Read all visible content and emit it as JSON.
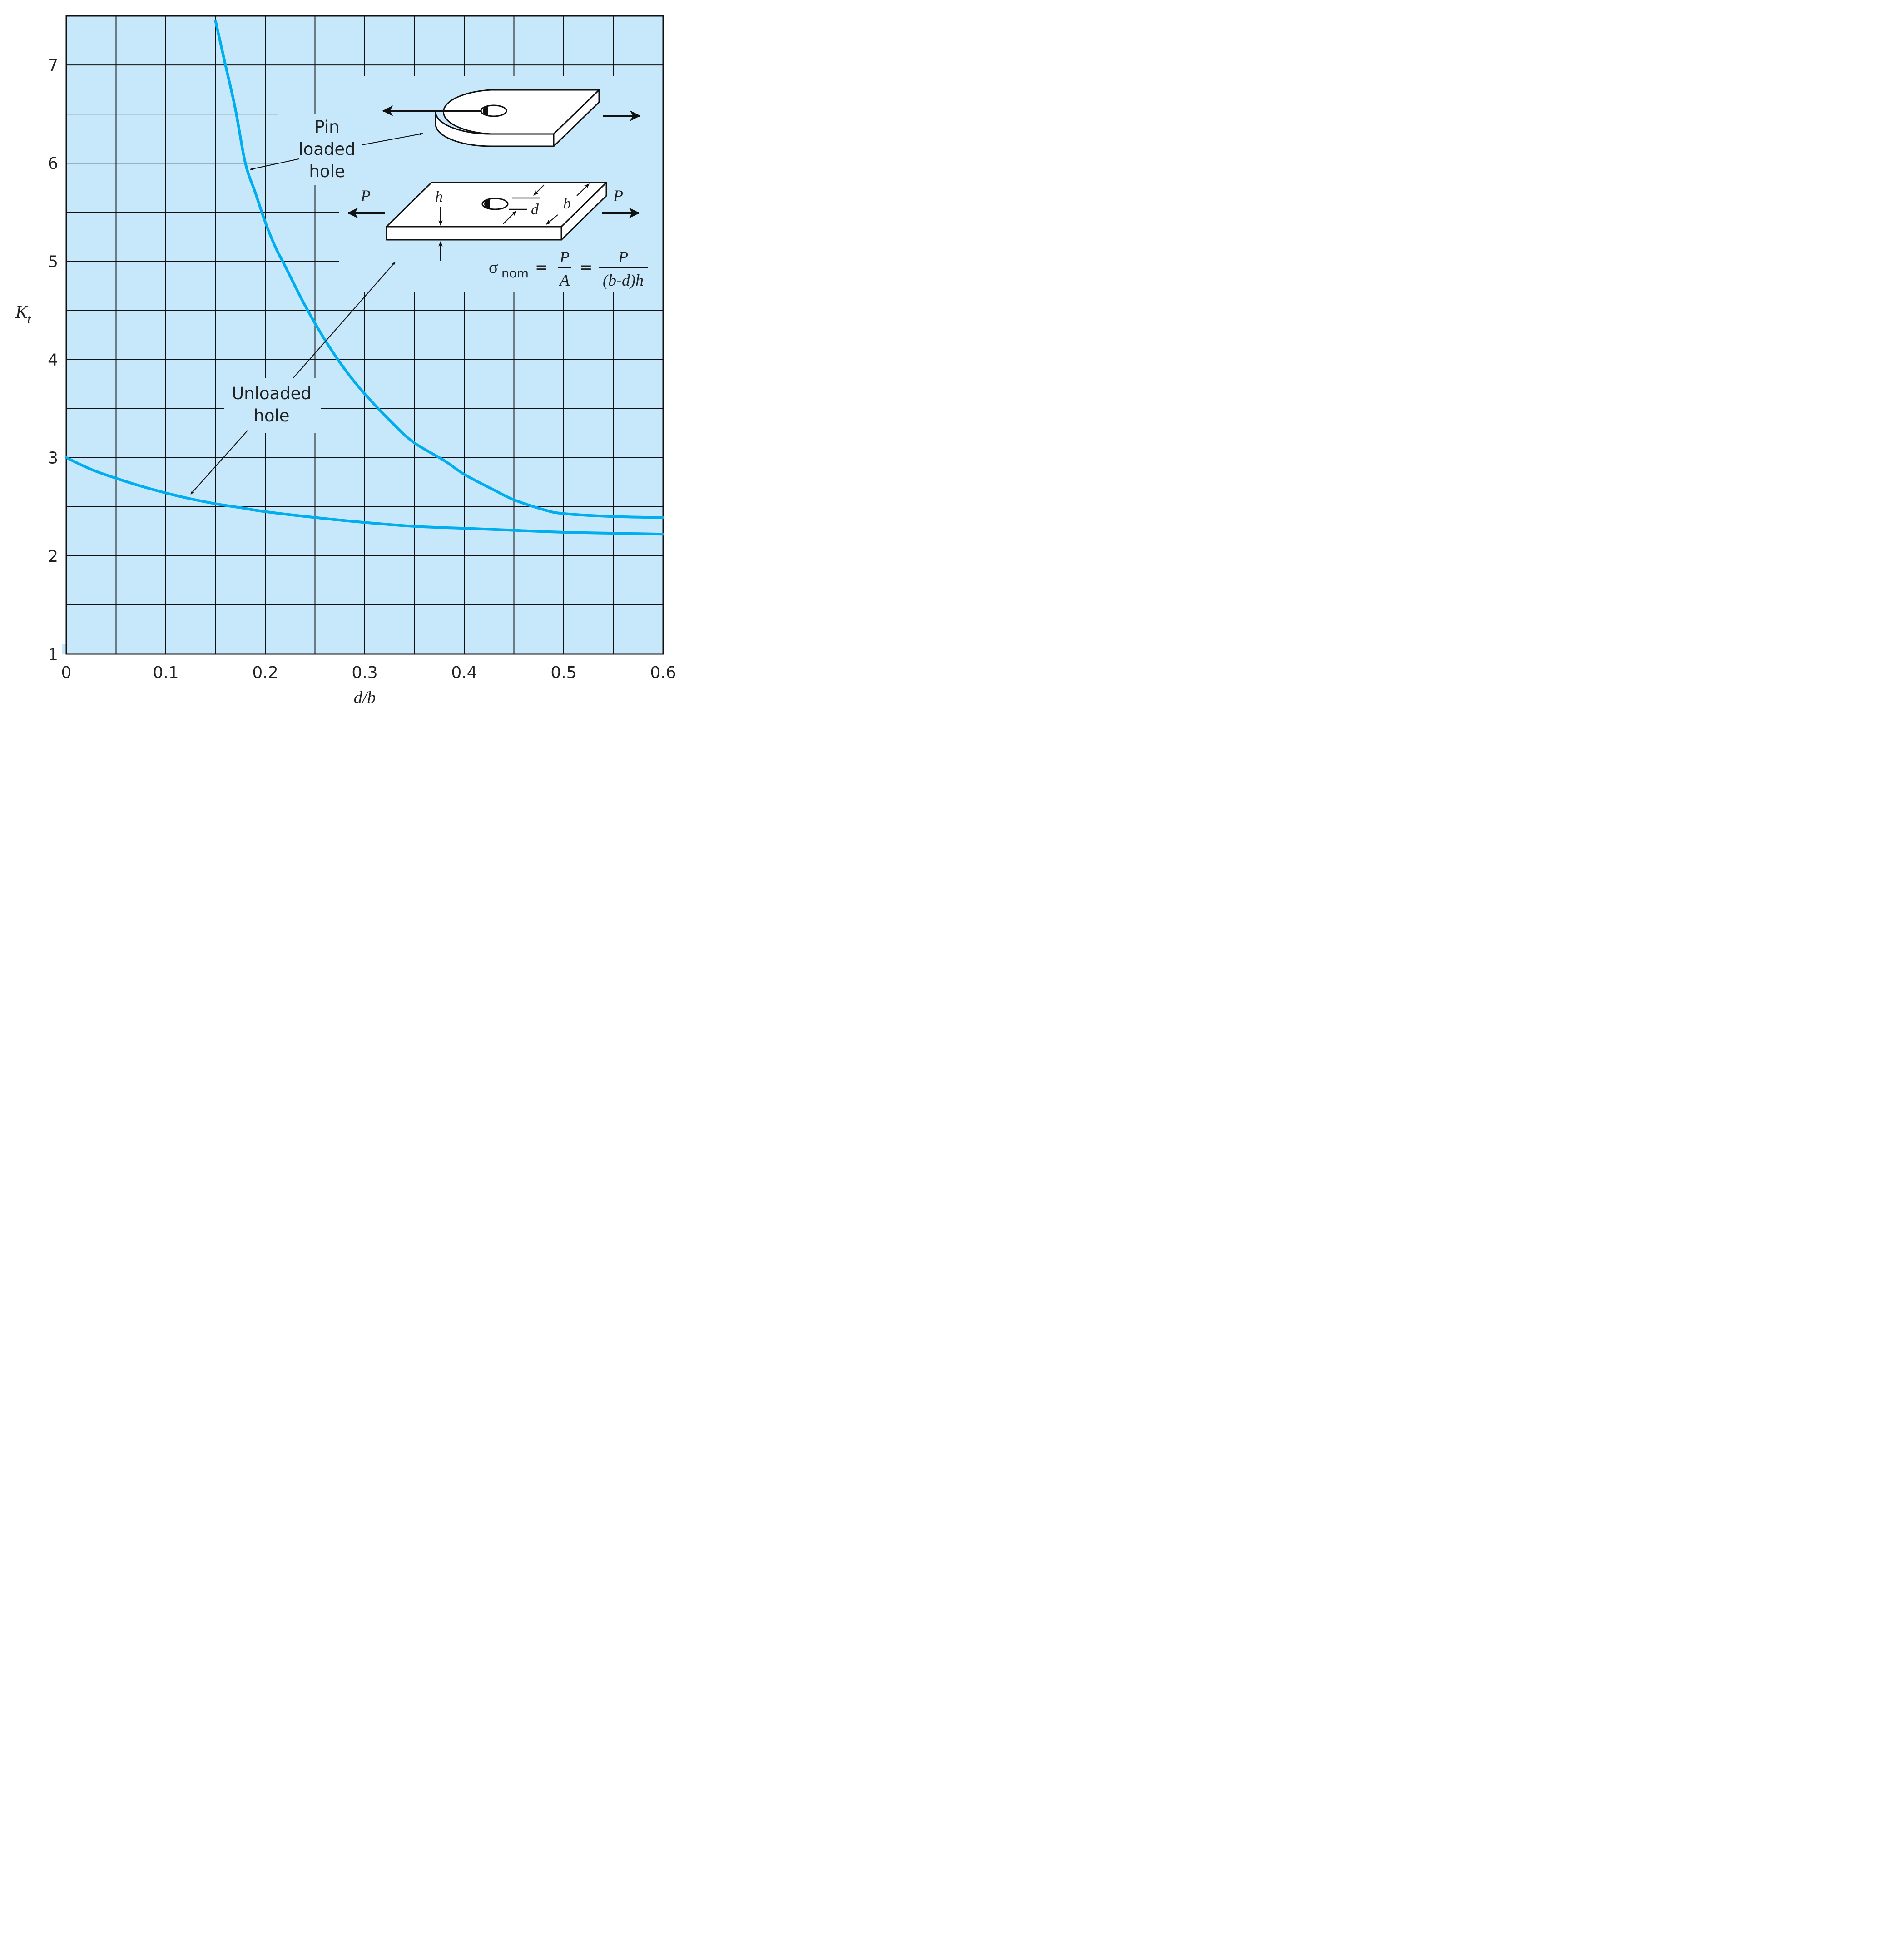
{
  "chart_data": {
    "type": "line",
    "xlabel": "d/b",
    "ylabel": "Kt",
    "xlim": [
      0,
      0.6
    ],
    "ylim": [
      1,
      7.5
    ],
    "x_ticks": [
      0,
      0.1,
      0.2,
      0.3,
      0.4,
      0.5,
      0.6
    ],
    "x_tick_labels": [
      "0",
      "0.1",
      "0.2",
      "0.3",
      "0.4",
      "0.5",
      "0.6"
    ],
    "y_ticks": [
      1,
      2,
      3,
      4,
      5,
      6,
      7
    ],
    "y_tick_labels": [
      "1",
      "2",
      "3",
      "4",
      "5",
      "6",
      "7"
    ],
    "grid": true,
    "grid_x_step": 0.05,
    "grid_y_step": 0.5,
    "colors": {
      "plot_background": "#C7E8FA",
      "curve": "#00AEEF",
      "grid": "#111111"
    },
    "series": [
      {
        "name": "Pin loaded hole",
        "x": [
          0.15,
          0.16,
          0.17,
          0.18,
          0.19,
          0.2,
          0.21,
          0.22,
          0.24,
          0.26,
          0.28,
          0.3,
          0.33,
          0.35,
          0.38,
          0.4,
          0.43,
          0.45,
          0.48,
          0.5,
          0.55,
          0.6
        ],
        "y": [
          7.45,
          7.0,
          6.55,
          6.0,
          5.7,
          5.4,
          5.15,
          4.95,
          4.55,
          4.2,
          3.9,
          3.65,
          3.33,
          3.15,
          2.97,
          2.83,
          2.67,
          2.57,
          2.47,
          2.43,
          2.4,
          2.39
        ]
      },
      {
        "name": "Unloaded hole",
        "x": [
          0.0,
          0.025,
          0.05,
          0.075,
          0.1,
          0.125,
          0.15,
          0.175,
          0.2,
          0.25,
          0.3,
          0.35,
          0.4,
          0.45,
          0.5,
          0.55,
          0.6
        ],
        "y": [
          3.0,
          2.88,
          2.79,
          2.71,
          2.64,
          2.58,
          2.53,
          2.49,
          2.45,
          2.39,
          2.34,
          2.3,
          2.28,
          2.26,
          2.24,
          2.23,
          2.22
        ]
      }
    ],
    "annotations": {
      "pin_loaded_lines": [
        "Pin",
        "loaded",
        "hole"
      ],
      "unloaded_lines": [
        "Unloaded",
        "hole"
      ]
    }
  },
  "inset": {
    "load_left": "P",
    "load_right": "P",
    "dim_h": "h",
    "dim_d": "d",
    "dim_b": "b",
    "formula": {
      "sigma": "σ",
      "sub": "nom",
      "eq1": "=",
      "num1": "P",
      "den1": "A",
      "eq2": "=",
      "num2": "P",
      "den2": "(b-d)h"
    }
  }
}
